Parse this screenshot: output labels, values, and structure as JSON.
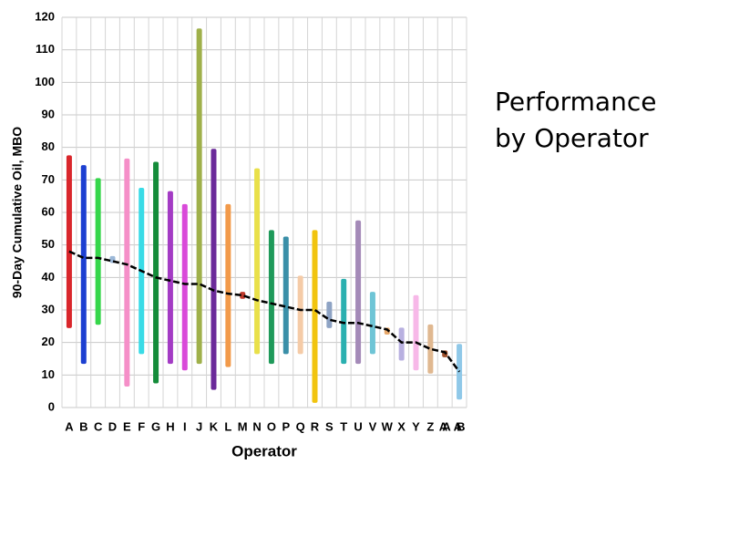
{
  "chart_data": {
    "type": "range",
    "title": "Performance by Operator",
    "x_label": "Operator",
    "y_label": "90-Day Cumulative Oil, MBO",
    "categories": [
      "A",
      "B",
      "C",
      "D",
      "E",
      "F",
      "G",
      "H",
      "I",
      "J",
      "K",
      "L",
      "M",
      "N",
      "O",
      "P",
      "Q",
      "R",
      "S",
      "T",
      "U",
      "V",
      "W",
      "X",
      "Y",
      "Z",
      "AA",
      "AB"
    ],
    "low": [
      25,
      14,
      26,
      45,
      7,
      17,
      8,
      14,
      12,
      14,
      6,
      13,
      34,
      17,
      14,
      17,
      17,
      2,
      25,
      14,
      14,
      17,
      23,
      15,
      12,
      11,
      16,
      3
    ],
    "high": [
      77,
      74,
      70,
      46,
      76,
      67,
      75,
      66,
      62,
      116,
      79,
      62,
      35,
      73,
      54,
      52,
      40,
      54,
      32,
      39,
      57,
      35,
      24,
      24,
      34,
      25,
      17,
      19
    ],
    "mean": [
      48,
      46,
      46,
      45,
      44,
      42,
      40,
      39,
      38,
      38,
      36,
      35,
      34.5,
      33,
      32,
      31,
      30,
      30,
      27,
      26,
      26,
      25,
      24,
      20,
      20,
      18,
      17,
      11
    ],
    "colors": [
      "#d9262b",
      "#1c3fd1",
      "#35d64a",
      "#9cb8d8",
      "#f58fc8",
      "#39dbe6",
      "#148c3a",
      "#a33bc4",
      "#d94ad9",
      "#9fb04a",
      "#6b2a9a",
      "#f29a4a",
      "#c0392b",
      "#e9e04a",
      "#1f9a5a",
      "#3a8fa8",
      "#f5cba7",
      "#f1c40f",
      "#8ea3c4",
      "#2ab0b0",
      "#a48ab8",
      "#6fc5d6",
      "#e8a86a",
      "#b8b0e0",
      "#f7b8e8",
      "#e0b890",
      "#a0522d",
      "#8fc8e8"
    ],
    "mean_color": "#000000",
    "ylim": [
      0,
      120
    ],
    "yticks": [
      0,
      10,
      20,
      30,
      40,
      50,
      60,
      70,
      80,
      90,
      100,
      110,
      120
    ],
    "grid": true
  }
}
